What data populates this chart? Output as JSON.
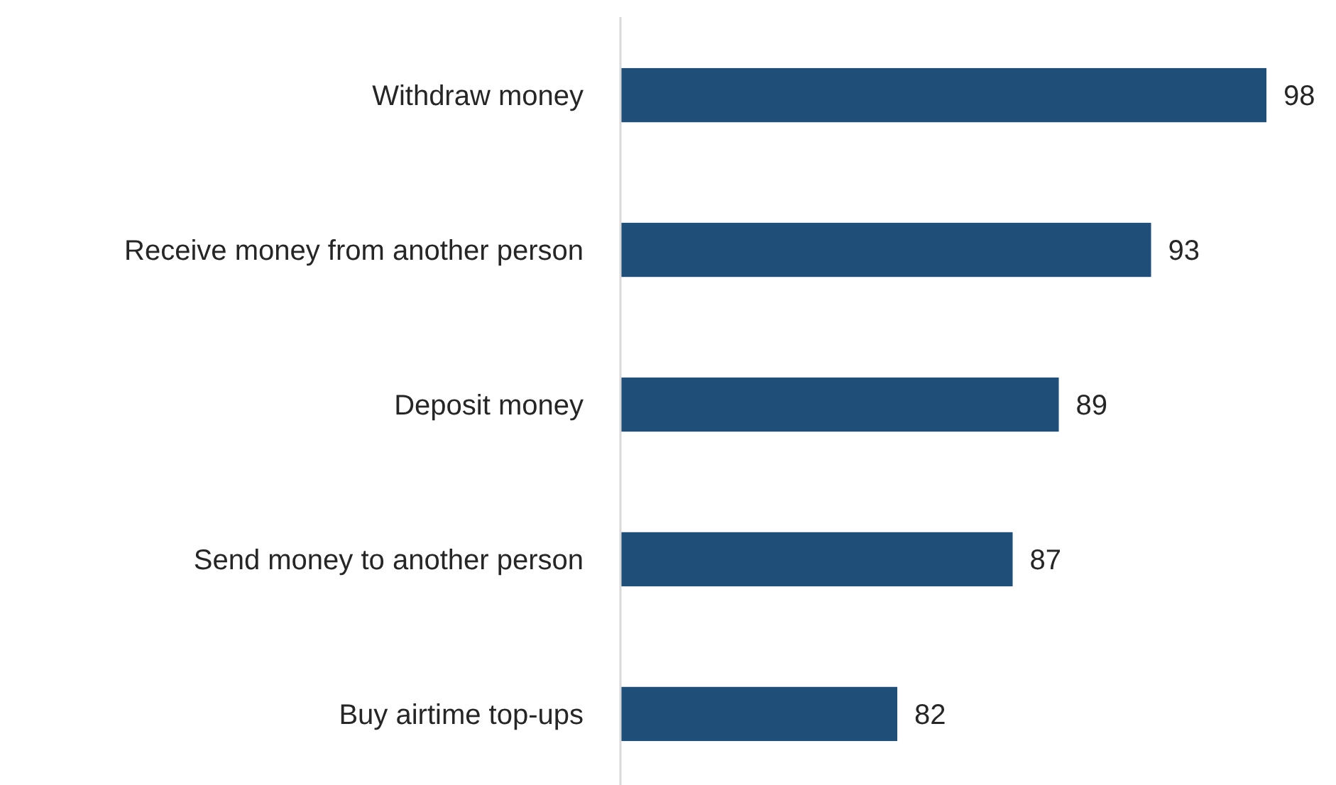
{
  "chart_data": {
    "type": "bar",
    "orientation": "horizontal",
    "categories": [
      "Withdraw money",
      "Receive money from another person",
      "Deposit money",
      "Send money to another person",
      "Buy airtime top-ups"
    ],
    "values": [
      98,
      93,
      89,
      87,
      82
    ],
    "color": "#1f4e79",
    "xlim": [
      70,
      98
    ],
    "tick_labels": "y",
    "data_labels": true
  }
}
